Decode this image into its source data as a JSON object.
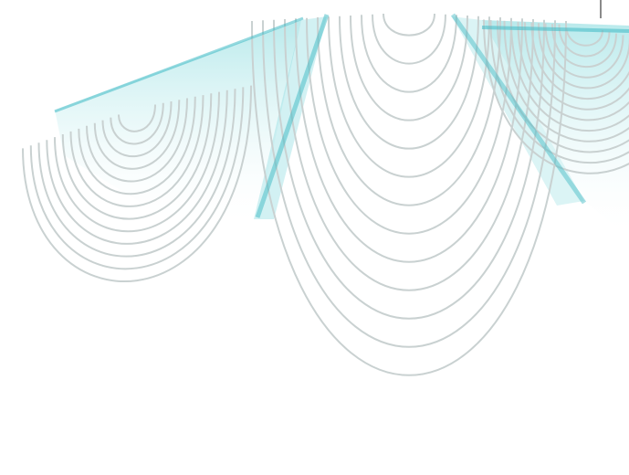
{
  "figure": {
    "line_color": "#c9d1d1",
    "tint_color": "#7fd8dc",
    "edge_color": "#3eb9c4",
    "background": "#ffffff",
    "lobe_count": 3,
    "rings_per_lobe": 13,
    "has_text": false
  }
}
